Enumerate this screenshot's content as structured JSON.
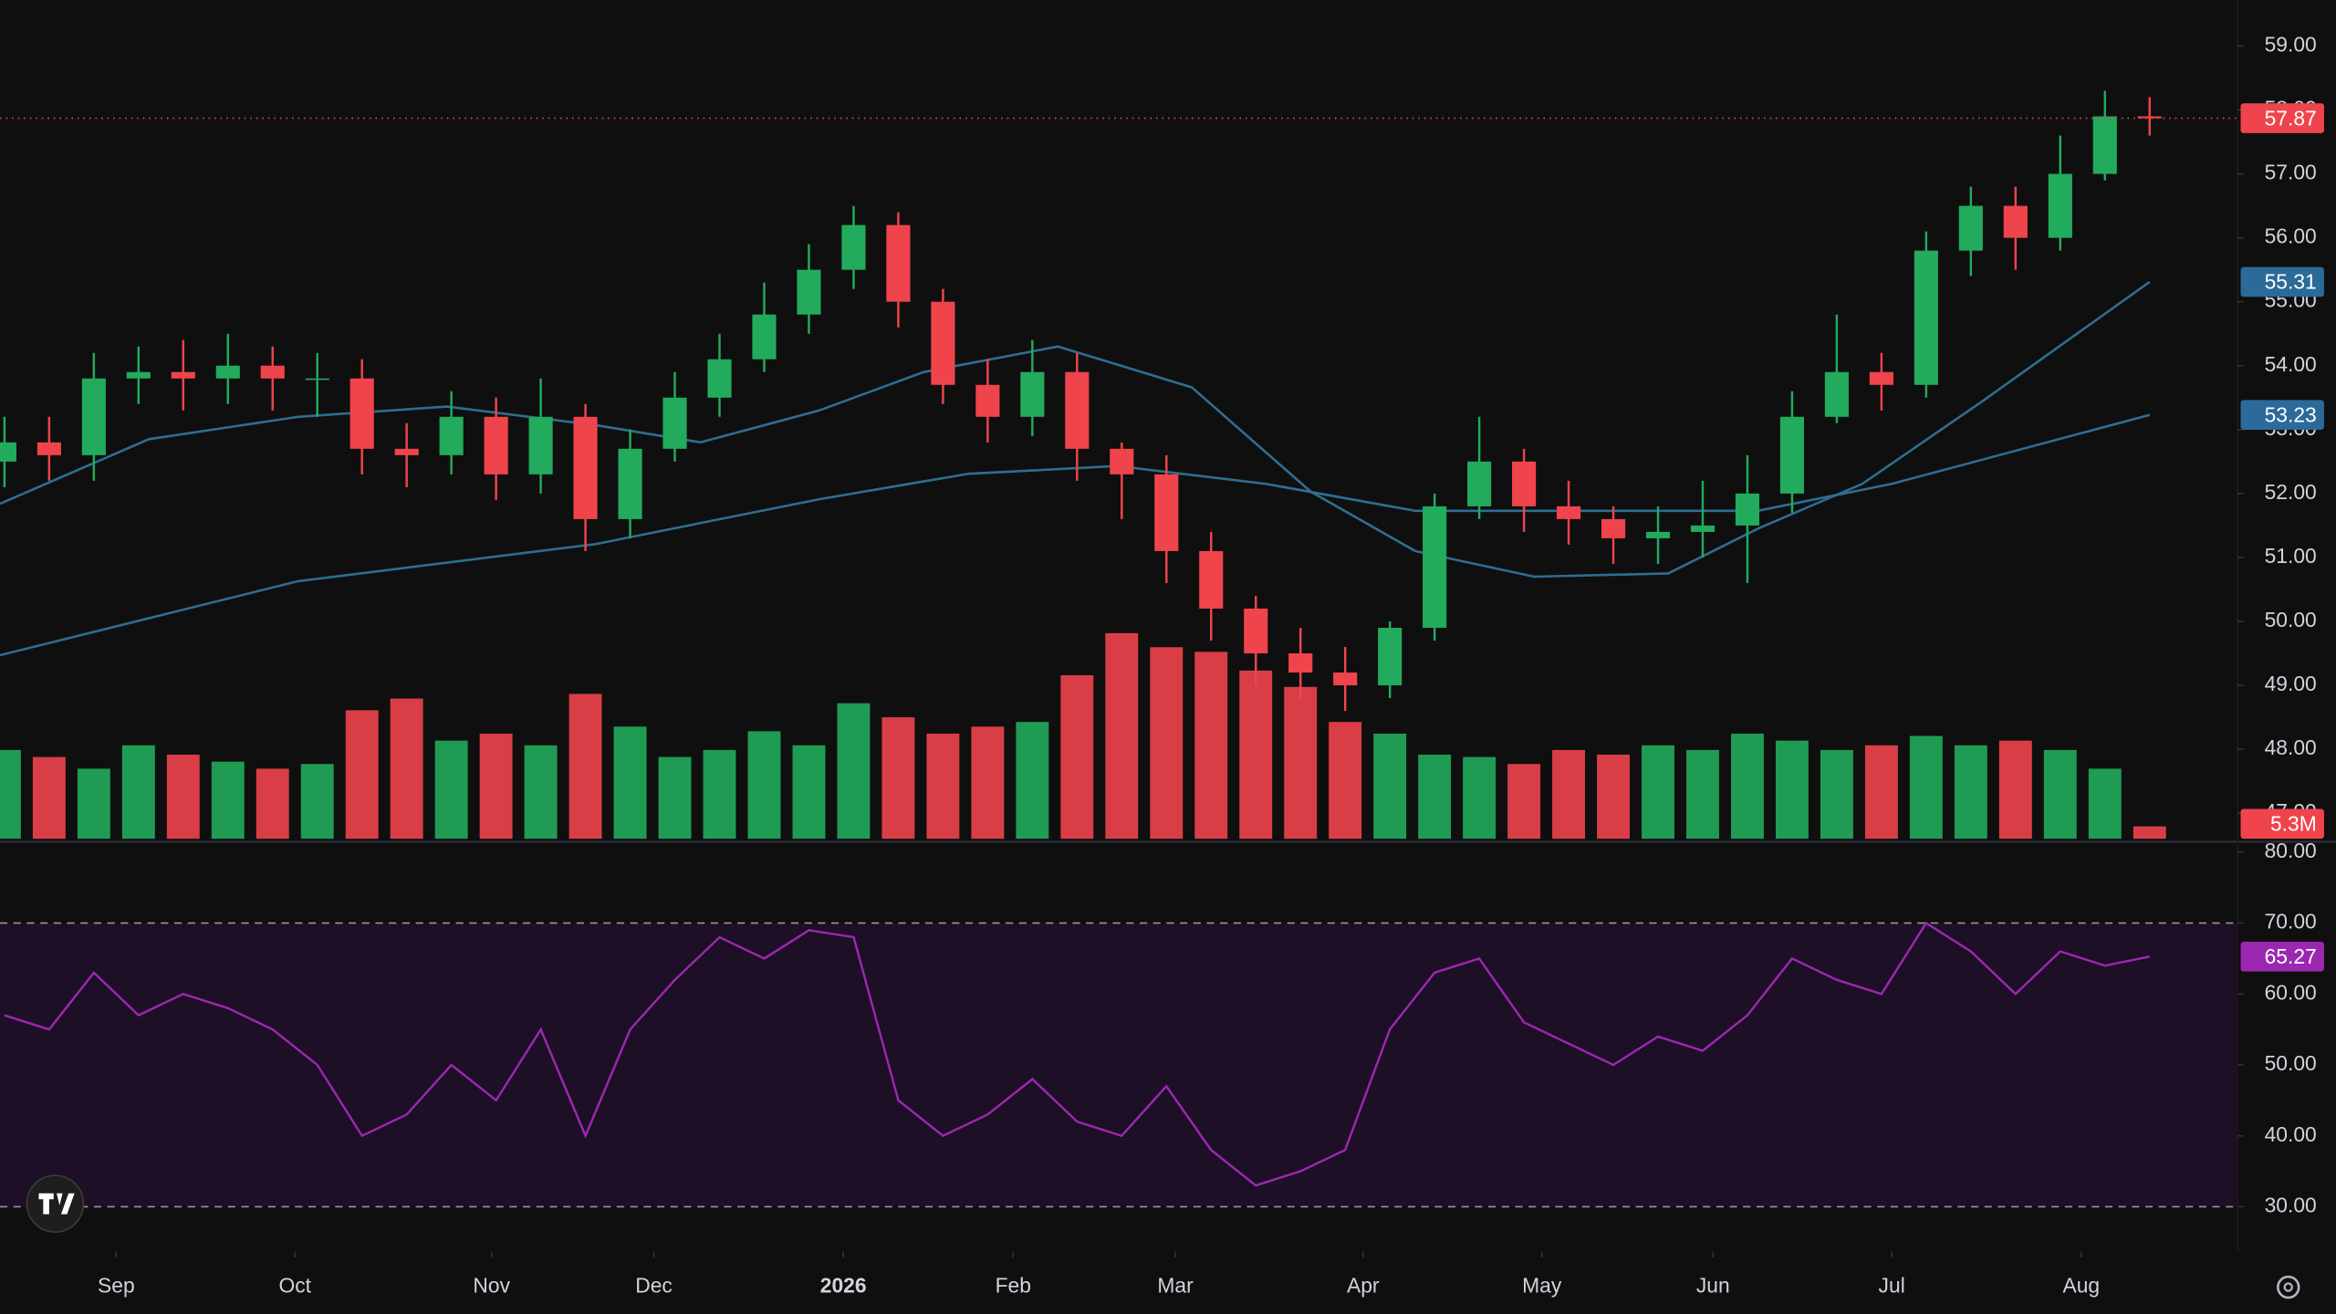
{
  "chart_data": {
    "type": "candlestick",
    "xlim": [
      -0.1,
      49.97
    ],
    "xticks": [
      {
        "value": 2.5,
        "label": "Sep"
      },
      {
        "value": 6.5,
        "label": "Oct"
      },
      {
        "value": 10.9,
        "label": "Nov"
      },
      {
        "value": 14.53,
        "label": "Dec"
      },
      {
        "value": 18.77,
        "label": "2026"
      },
      {
        "value": 22.57,
        "label": "Feb"
      },
      {
        "value": 26.2,
        "label": "Mar"
      },
      {
        "value": 30.4,
        "label": "Apr"
      },
      {
        "value": 34.4,
        "label": "May"
      },
      {
        "value": 38.23,
        "label": "Jun"
      },
      {
        "value": 42.23,
        "label": "Jul"
      },
      {
        "value": 46.47,
        "label": "Aug"
      }
    ],
    "ylim": [
      46.6,
      59.72
    ],
    "yticks": [
      {
        "value": 47,
        "label": "47.00"
      },
      {
        "value": 48,
        "label": "48.00"
      },
      {
        "value": 49,
        "label": "49.00"
      },
      {
        "value": 50,
        "label": "50.00"
      },
      {
        "value": 51,
        "label": "51.00"
      },
      {
        "value": 52,
        "label": "52.00"
      },
      {
        "value": 53,
        "label": "53.00"
      },
      {
        "value": 54,
        "label": "54.00"
      },
      {
        "value": 55,
        "label": "55.00"
      },
      {
        "value": 56,
        "label": "56.00"
      },
      {
        "value": 57,
        "label": "57.00"
      },
      {
        "value": 58,
        "label": "58.00"
      },
      {
        "value": 59,
        "label": "59.00"
      }
    ],
    "grid": false,
    "colors": {
      "up": "#22ab5c",
      "down": "#f0444c"
    },
    "open": [
      52.5,
      52.8,
      52.6,
      53.8,
      53.9,
      53.8,
      54.0,
      53.8,
      53.8,
      52.7,
      52.6,
      53.2,
      52.3,
      53.2,
      51.6,
      52.7,
      53.5,
      54.1,
      54.8,
      55.5,
      56.2,
      55.0,
      53.7,
      53.2,
      53.9,
      52.7,
      52.3,
      51.1,
      50.2,
      49.5,
      49.2,
      49.0,
      49.9,
      51.8,
      52.5,
      51.8,
      51.6,
      51.3,
      51.4,
      51.5,
      52.0,
      53.2,
      53.9,
      53.7,
      55.8,
      56.5,
      56.0,
      57.0,
      57.9
    ],
    "high": [
      53.2,
      53.2,
      54.2,
      54.3,
      54.4,
      54.5,
      54.3,
      54.2,
      54.1,
      53.1,
      53.6,
      53.5,
      53.8,
      53.4,
      53.0,
      53.9,
      54.5,
      55.3,
      55.9,
      56.5,
      56.4,
      55.2,
      54.1,
      54.4,
      54.2,
      52.8,
      52.6,
      51.4,
      50.4,
      49.9,
      49.6,
      50.0,
      52.0,
      53.2,
      52.7,
      52.2,
      51.8,
      51.8,
      52.2,
      52.6,
      53.6,
      54.8,
      54.2,
      56.1,
      56.8,
      56.8,
      57.6,
      58.3,
      58.2
    ],
    "low": [
      52.1,
      52.2,
      52.2,
      53.4,
      53.3,
      53.4,
      53.3,
      53.2,
      52.3,
      52.1,
      52.3,
      51.9,
      52.0,
      51.1,
      51.3,
      52.5,
      53.2,
      53.9,
      54.5,
      55.2,
      54.6,
      53.4,
      52.8,
      52.9,
      52.2,
      51.6,
      50.6,
      49.7,
      49.0,
      48.8,
      48.6,
      48.8,
      49.7,
      51.6,
      51.4,
      51.2,
      50.9,
      50.9,
      51.0,
      50.6,
      51.7,
      53.1,
      53.3,
      53.5,
      55.4,
      55.5,
      55.8,
      56.9,
      57.6
    ],
    "close": [
      52.8,
      52.6,
      53.8,
      53.9,
      53.8,
      54.0,
      53.8,
      53.8,
      52.7,
      52.6,
      53.2,
      52.3,
      53.2,
      51.6,
      52.7,
      53.5,
      54.1,
      54.8,
      55.5,
      56.2,
      55.0,
      53.7,
      53.2,
      53.9,
      52.7,
      52.3,
      51.1,
      50.2,
      49.5,
      49.2,
      49.0,
      49.9,
      51.8,
      52.5,
      51.8,
      51.6,
      51.3,
      51.4,
      51.5,
      52.0,
      53.2,
      53.9,
      53.7,
      55.8,
      56.5,
      56.0,
      57.0,
      57.9,
      57.87
    ],
    "volume": {
      "values": [
        38,
        35,
        30,
        40,
        36,
        33,
        30,
        32,
        55,
        60,
        42,
        45,
        40,
        62,
        48,
        35,
        38,
        46,
        40,
        58,
        52,
        45,
        48,
        50,
        70,
        88,
        82,
        80,
        72,
        65,
        50,
        45,
        36,
        35,
        32,
        38,
        36,
        40,
        38,
        45,
        42,
        38,
        40,
        44,
        40,
        42,
        38,
        30,
        5.3
      ],
      "value_labels": [
        null,
        null,
        null,
        null,
        null,
        null,
        null,
        null,
        null,
        null,
        null,
        null,
        null,
        null,
        null,
        null,
        null,
        null,
        null,
        null,
        null,
        null,
        null,
        null,
        null,
        null,
        null,
        null,
        null,
        null,
        null,
        null,
        null,
        null,
        null,
        null,
        null,
        null,
        null,
        null,
        null,
        null,
        null,
        null,
        null,
        null,
        null,
        null,
        "5.3M"
      ]
    },
    "moving_averages": [
      {
        "color": "#2f6d91",
        "x": [
          -0.1,
          3.23,
          6.57,
          9.9,
          13.23,
          15.57,
          18.23,
          20.57,
          23.57,
          26.57,
          29.23,
          31.57,
          34.23,
          37.23,
          39.23,
          41.57,
          44.23,
          48
        ],
        "values": [
          51.84,
          52.85,
          53.2,
          53.36,
          53.07,
          52.8,
          53.3,
          53.9,
          54.3,
          53.66,
          52.03,
          51.1,
          50.7,
          50.75,
          51.45,
          52.15,
          53.43,
          55.31
        ]
      },
      {
        "color": "#2f6d91",
        "x": [
          -0.1,
          6.57,
          13.23,
          18.23,
          21.57,
          24.9,
          28.23,
          31.57,
          34.9,
          39.23,
          42.23,
          48
        ],
        "values": [
          49.47,
          50.63,
          51.21,
          51.91,
          52.31,
          52.43,
          52.15,
          51.73,
          51.73,
          51.73,
          52.15,
          53.23
        ]
      }
    ],
    "rsi": {
      "color": "#9c27b0",
      "ylim": [
        23.7,
        81.47
      ],
      "yticks": [
        {
          "value": 30,
          "label": "30.00"
        },
        {
          "value": 40,
          "label": "40.00"
        },
        {
          "value": 50,
          "label": "50.00"
        },
        {
          "value": 60,
          "label": "60.00"
        },
        {
          "value": 70,
          "label": "70.00"
        },
        {
          "value": 80,
          "label": "80.00"
        }
      ],
      "bands": [
        30,
        70
      ],
      "values": [
        57,
        55,
        63,
        57,
        60,
        58,
        55,
        50,
        40,
        43,
        50,
        45,
        55,
        40,
        55,
        62,
        68,
        65,
        69,
        68,
        45,
        40,
        43,
        48,
        42,
        40,
        47,
        38,
        33,
        35,
        38,
        55,
        63,
        65,
        56,
        53,
        50,
        54,
        52,
        57,
        65,
        62,
        60,
        70,
        66,
        60,
        66,
        64,
        65.27
      ]
    }
  }
}
